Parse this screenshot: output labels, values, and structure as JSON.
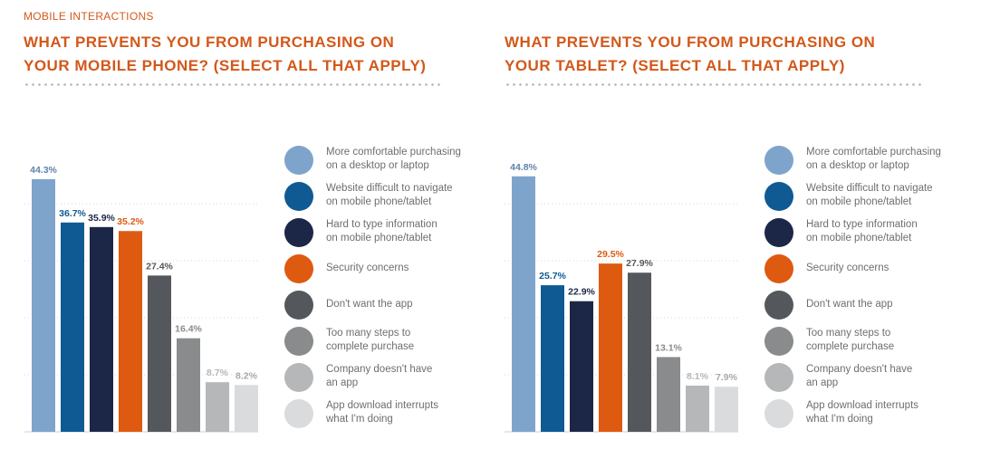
{
  "section_label": "MOBILE INTERACTIONS",
  "colors": {
    "title": "#d3581a",
    "categories": [
      "#7ea4cc",
      "#0f5a93",
      "#1c2748",
      "#de5a10",
      "#54585c",
      "#898b8c",
      "#b5b7b8",
      "#d9dbdc"
    ],
    "labels": [
      "#5f84ae",
      "#0f5a93",
      "#1c2748",
      "#de5a10",
      "#54585c",
      "#898b8c",
      "#b5b7b8",
      "#a7a9ab"
    ],
    "grid": "#a9a9a9"
  },
  "legend": [
    [
      "More comfortable purchasing",
      "on a desktop or laptop"
    ],
    [
      "Website difficult to navigate",
      "on mobile phone/tablet"
    ],
    [
      "Hard to type information",
      "on mobile phone/tablet"
    ],
    [
      "Security concerns"
    ],
    [
      "Don't want the app"
    ],
    [
      "Too many steps to",
      "complete purchase"
    ],
    [
      "Company doesn't have",
      "an app"
    ],
    [
      "App download interrupts",
      "what I'm doing"
    ]
  ],
  "chart_data": [
    {
      "type": "bar",
      "title_lines": [
        "WHAT PREVENTS YOU FROM PURCHASING ON",
        "YOUR MOBILE PHONE? (SELECT ALL THAT APPLY)"
      ],
      "categories": [
        "More comfortable purchasing on a desktop or laptop",
        "Website difficult to navigate on mobile phone/tablet",
        "Hard to type information on mobile phone/tablet",
        "Security concerns",
        "Don't want the app",
        "Too many steps to complete purchase",
        "Company doesn't have an app",
        "App download interrupts what I'm doing"
      ],
      "values": [
        44.3,
        36.7,
        35.9,
        35.2,
        27.4,
        16.4,
        8.7,
        8.2
      ],
      "data_labels": [
        "44.3%",
        "36.7%",
        "35.9%",
        "35.2%",
        "27.4%",
        "16.4%",
        "8.7%",
        "8.2%"
      ],
      "ylim": [
        0,
        50
      ],
      "grid": true,
      "legend_position": "right"
    },
    {
      "type": "bar",
      "title_lines": [
        "WHAT PREVENTS YOU FROM PURCHASING ON",
        "YOUR TABLET? (SELECT ALL THAT APPLY)"
      ],
      "categories": [
        "More comfortable purchasing on a desktop or laptop",
        "Website difficult to navigate on mobile phone/tablet",
        "Hard to type information on mobile phone/tablet",
        "Security concerns",
        "Don't want the app",
        "Too many steps to complete purchase",
        "Company doesn't have an app",
        "App download interrupts what I'm doing"
      ],
      "values": [
        44.8,
        25.7,
        22.9,
        29.5,
        27.9,
        13.1,
        8.1,
        7.9
      ],
      "data_labels": [
        "44.8%",
        "25.7%",
        "22.9%",
        "29.5%",
        "27.9%",
        "13.1%",
        "8.1%",
        "7.9%"
      ],
      "ylim": [
        0,
        50
      ],
      "grid": true,
      "legend_position": "right"
    }
  ]
}
